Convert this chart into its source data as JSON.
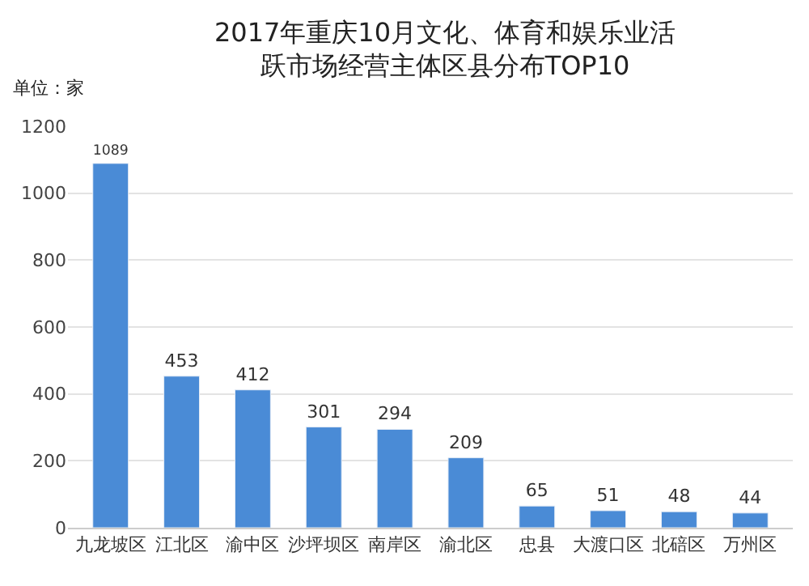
{
  "chart_data": {
    "type": "bar",
    "title": "2017年重庆10月文化、体育和娱乐业活跃市场经营主体区县分布TOP10",
    "ylabel": "单位：家",
    "categories": [
      "九龙坡区",
      "江北区",
      "渝中区",
      "沙坪坝区",
      "南岸区",
      "渝北区",
      "忠县",
      "大渡口区",
      "北碚区",
      "万州区"
    ],
    "values": [
      1089,
      453,
      412,
      301,
      294,
      209,
      65,
      51,
      48,
      44
    ],
    "color": "#4a8bd6",
    "data_labels": true,
    "ylim": [
      0,
      1200
    ],
    "yticks": [
      0,
      200,
      400,
      600,
      800,
      1000,
      1200
    ],
    "grid": "y",
    "legend": false
  }
}
